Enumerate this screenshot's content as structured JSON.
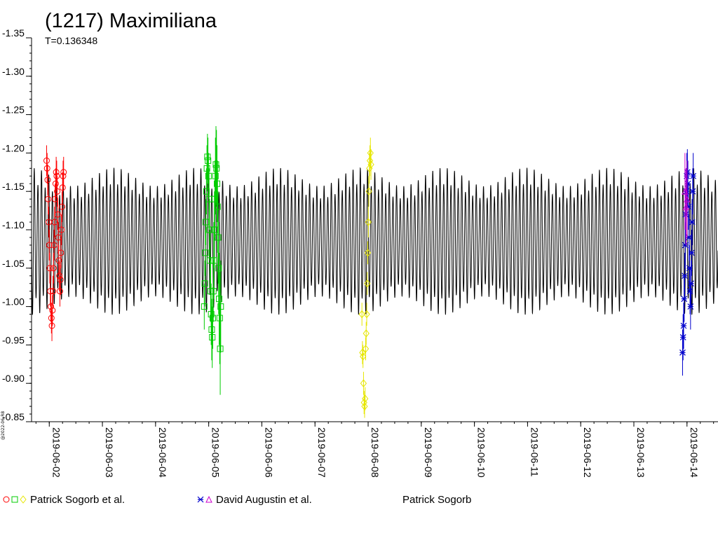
{
  "chart_data": {
    "type": "scatter",
    "title": "(1217) Maximiliana",
    "subtitle": "T=0.136348",
    "credit": "@2022-06-R8",
    "xlabel": "",
    "ylabel": "",
    "x_range": [
      "2019-06-01T16:00",
      "2019-06-14T14:00"
    ],
    "ylim": [
      -1.35,
      -0.85
    ],
    "y_inverted": true,
    "y_ticks": [
      "-1.35",
      "-1.30",
      "-1.25",
      "-1.20",
      "-1.15",
      "-1.10",
      "-1.05",
      "-1.00",
      "-0.95",
      "-0.90",
      "-0.85"
    ],
    "x_ticks": [
      "2019-06-02",
      "2019-06-03",
      "2019-06-04",
      "2019-06-05",
      "2019-06-06",
      "2019-06-07",
      "2019-06-08",
      "2019-06-09",
      "2019-06-10",
      "2019-06-11",
      "2019-06-12",
      "2019-06-13",
      "2019-06-14"
    ],
    "model_curve": {
      "color": "#000000",
      "period_days": 0.136348,
      "mean_mag": -1.085,
      "amp_max": 0.1,
      "amp_min": 0.075
    },
    "legend": [
      {
        "label": "Patrick Sogorb et al.",
        "symbols": [
          "circle",
          "square",
          "diamond"
        ],
        "colors": [
          "#ff0000",
          "#00cc00",
          "#e6e600"
        ]
      },
      {
        "label": "David Augustin et al.",
        "symbols": [
          "star",
          "triangle"
        ],
        "colors": [
          "#0000cc",
          "#cc00cc"
        ]
      },
      {
        "label": "Patrick Sogorb",
        "symbols": [],
        "colors": []
      }
    ],
    "series": [
      {
        "name": "Patrick Sogorb et al.",
        "marker": "circle",
        "color": "#ff0000",
        "points": [
          {
            "x": "2019-06-01T22:48",
            "y": -1.19,
            "err": 0.02
          },
          {
            "x": "2019-06-01T23:02",
            "y": -1.18,
            "err": 0.02
          },
          {
            "x": "2019-06-01T23:17",
            "y": -1.165,
            "err": 0.02
          },
          {
            "x": "2019-06-01T23:31",
            "y": -1.14,
            "err": 0.02
          },
          {
            "x": "2019-06-01T23:46",
            "y": -1.11,
            "err": 0.02
          },
          {
            "x": "2019-06-02T00:00",
            "y": -1.08,
            "err": 0.02
          },
          {
            "x": "2019-06-02T00:14",
            "y": -1.05,
            "err": 0.02
          },
          {
            "x": "2019-06-02T00:29",
            "y": -1.02,
            "err": 0.02
          },
          {
            "x": "2019-06-02T00:43",
            "y": -1.0,
            "err": 0.02
          },
          {
            "x": "2019-06-02T00:58",
            "y": -0.985,
            "err": 0.02
          },
          {
            "x": "2019-06-02T01:12",
            "y": -0.975,
            "err": 0.02
          },
          {
            "x": "2019-06-02T01:26",
            "y": -0.995,
            "err": 0.02
          },
          {
            "x": "2019-06-02T01:41",
            "y": -1.02,
            "err": 0.02
          },
          {
            "x": "2019-06-02T01:55",
            "y": -1.05,
            "err": 0.02
          },
          {
            "x": "2019-06-02T02:10",
            "y": -1.08,
            "err": 0.02
          },
          {
            "x": "2019-06-02T02:24",
            "y": -1.11,
            "err": 0.02
          },
          {
            "x": "2019-06-02T02:38",
            "y": -1.14,
            "err": 0.02
          },
          {
            "x": "2019-06-02T02:53",
            "y": -1.16,
            "err": 0.02
          },
          {
            "x": "2019-06-02T03:07",
            "y": -1.175,
            "err": 0.02
          },
          {
            "x": "2019-06-02T03:22",
            "y": -1.17,
            "err": 0.02
          },
          {
            "x": "2019-06-02T03:36",
            "y": -1.15,
            "err": 0.02
          },
          {
            "x": "2019-06-02T03:50",
            "y": -1.12,
            "err": 0.02
          },
          {
            "x": "2019-06-02T04:05",
            "y": -1.09,
            "err": 0.02
          },
          {
            "x": "2019-06-02T04:19",
            "y": -1.06,
            "err": 0.02
          },
          {
            "x": "2019-06-02T04:34",
            "y": -1.04,
            "err": 0.02
          },
          {
            "x": "2019-06-02T04:48",
            "y": -1.02,
            "err": 0.02
          },
          {
            "x": "2019-06-02T05:02",
            "y": -1.035,
            "err": 0.02
          },
          {
            "x": "2019-06-02T05:17",
            "y": -1.07,
            "err": 0.02
          },
          {
            "x": "2019-06-02T05:31",
            "y": -1.1,
            "err": 0.02
          },
          {
            "x": "2019-06-02T05:46",
            "y": -1.13,
            "err": 0.02
          },
          {
            "x": "2019-06-02T06:00",
            "y": -1.155,
            "err": 0.02
          },
          {
            "x": "2019-06-02T06:14",
            "y": -1.17,
            "err": 0.02
          },
          {
            "x": "2019-06-02T06:29",
            "y": -1.175,
            "err": 0.02
          }
        ]
      },
      {
        "name": "Patrick Sogorb et al.",
        "marker": "square",
        "color": "#00cc00",
        "points": [
          {
            "x": "2019-06-04T22:00",
            "y": -1.0,
            "err": 0.03
          },
          {
            "x": "2019-06-04T22:14",
            "y": -1.03,
            "err": 0.03
          },
          {
            "x": "2019-06-04T22:29",
            "y": -1.07,
            "err": 0.03
          },
          {
            "x": "2019-06-04T22:43",
            "y": -1.11,
            "err": 0.03
          },
          {
            "x": "2019-06-04T22:58",
            "y": -1.15,
            "err": 0.03
          },
          {
            "x": "2019-06-04T23:12",
            "y": -1.18,
            "err": 0.03
          },
          {
            "x": "2019-06-04T23:26",
            "y": -1.195,
            "err": 0.03
          },
          {
            "x": "2019-06-04T23:41",
            "y": -1.19,
            "err": 0.03
          },
          {
            "x": "2019-06-04T23:55",
            "y": -1.17,
            "err": 0.03
          },
          {
            "x": "2019-06-05T00:10",
            "y": -1.14,
            "err": 0.04
          },
          {
            "x": "2019-06-05T00:24",
            "y": -1.1,
            "err": 0.04
          },
          {
            "x": "2019-06-05T00:38",
            "y": -1.06,
            "err": 0.04
          },
          {
            "x": "2019-06-05T00:53",
            "y": -1.02,
            "err": 0.04
          },
          {
            "x": "2019-06-05T01:07",
            "y": -0.99,
            "err": 0.04
          },
          {
            "x": "2019-06-05T01:22",
            "y": -0.97,
            "err": 0.04
          },
          {
            "x": "2019-06-05T01:36",
            "y": -0.96,
            "err": 0.04
          },
          {
            "x": "2019-06-05T01:50",
            "y": -0.985,
            "err": 0.04
          },
          {
            "x": "2019-06-05T02:05",
            "y": -1.02,
            "err": 0.04
          },
          {
            "x": "2019-06-05T02:19",
            "y": -1.06,
            "err": 0.05
          },
          {
            "x": "2019-06-05T02:34",
            "y": -1.1,
            "err": 0.05
          },
          {
            "x": "2019-06-05T02:48",
            "y": -1.14,
            "err": 0.05
          },
          {
            "x": "2019-06-05T03:02",
            "y": -1.17,
            "err": 0.05
          },
          {
            "x": "2019-06-05T03:17",
            "y": -1.185,
            "err": 0.05
          },
          {
            "x": "2019-06-05T03:31",
            "y": -1.18,
            "err": 0.05
          },
          {
            "x": "2019-06-05T03:46",
            "y": -1.16,
            "err": 0.05
          },
          {
            "x": "2019-06-05T04:00",
            "y": -1.13,
            "err": 0.06
          },
          {
            "x": "2019-06-05T04:14",
            "y": -1.09,
            "err": 0.06
          },
          {
            "x": "2019-06-05T04:29",
            "y": -1.05,
            "err": 0.06
          },
          {
            "x": "2019-06-05T04:43",
            "y": -1.01,
            "err": 0.06
          },
          {
            "x": "2019-06-05T04:58",
            "y": -0.985,
            "err": 0.06
          },
          {
            "x": "2019-06-05T05:12",
            "y": -0.945,
            "err": 0.06
          },
          {
            "x": "2019-06-05T05:26",
            "y": -1.0,
            "err": 0.06
          }
        ]
      },
      {
        "name": "Patrick Sogorb et al.",
        "marker": "diamond",
        "color": "#e6e600",
        "points": [
          {
            "x": "2019-06-07T21:12",
            "y": -0.99,
            "err": 0.015
          },
          {
            "x": "2019-06-07T21:26",
            "y": -0.94,
            "err": 0.015
          },
          {
            "x": "2019-06-07T21:41",
            "y": -0.935,
            "err": 0.015
          },
          {
            "x": "2019-06-07T21:55",
            "y": -0.9,
            "err": 0.015
          },
          {
            "x": "2019-06-07T22:10",
            "y": -0.875,
            "err": 0.015
          },
          {
            "x": "2019-06-07T22:24",
            "y": -0.87,
            "err": 0.015
          },
          {
            "x": "2019-06-07T22:38",
            "y": -0.88,
            "err": 0.015
          },
          {
            "x": "2019-06-07T22:53",
            "y": -0.945,
            "err": 0.015
          },
          {
            "x": "2019-06-07T23:07",
            "y": -0.965,
            "err": 0.015
          },
          {
            "x": "2019-06-07T23:22",
            "y": -0.99,
            "err": 0.015
          },
          {
            "x": "2019-06-07T23:36",
            "y": -1.03,
            "err": 0.015
          },
          {
            "x": "2019-06-07T23:50",
            "y": -1.07,
            "err": 0.015
          },
          {
            "x": "2019-06-08T00:05",
            "y": -1.11,
            "err": 0.02
          },
          {
            "x": "2019-06-08T00:19",
            "y": -1.15,
            "err": 0.02
          },
          {
            "x": "2019-06-08T00:34",
            "y": -1.18,
            "err": 0.02
          },
          {
            "x": "2019-06-08T00:48",
            "y": -1.19,
            "err": 0.02
          },
          {
            "x": "2019-06-08T01:02",
            "y": -1.2,
            "err": 0.02
          },
          {
            "x": "2019-06-08T01:17",
            "y": -1.185,
            "err": 0.02
          }
        ]
      },
      {
        "name": "David Augustin et al.",
        "marker": "star",
        "color": "#0000cc",
        "points": [
          {
            "x": "2019-06-13T22:00",
            "y": -0.94,
            "err": 0.03
          },
          {
            "x": "2019-06-13T22:14",
            "y": -0.96,
            "err": 0.03
          },
          {
            "x": "2019-06-13T22:29",
            "y": -0.975,
            "err": 0.03
          },
          {
            "x": "2019-06-13T22:43",
            "y": -1.01,
            "err": 0.03
          },
          {
            "x": "2019-06-13T22:58",
            "y": -1.04,
            "err": 0.03
          },
          {
            "x": "2019-06-13T23:12",
            "y": -1.08,
            "err": 0.03
          },
          {
            "x": "2019-06-13T23:26",
            "y": -1.12,
            "err": 0.03
          },
          {
            "x": "2019-06-13T23:41",
            "y": -1.15,
            "err": 0.03
          },
          {
            "x": "2019-06-13T23:55",
            "y": -1.17,
            "err": 0.03
          },
          {
            "x": "2019-06-14T00:10",
            "y": -1.175,
            "err": 0.03
          },
          {
            "x": "2019-06-14T00:24",
            "y": -1.16,
            "err": 0.03
          },
          {
            "x": "2019-06-14T00:38",
            "y": -1.13,
            "err": 0.03
          },
          {
            "x": "2019-06-14T00:53",
            "y": -1.09,
            "err": 0.03
          },
          {
            "x": "2019-06-14T01:07",
            "y": -1.05,
            "err": 0.03
          },
          {
            "x": "2019-06-14T01:22",
            "y": -1.02,
            "err": 0.03
          },
          {
            "x": "2019-06-14T01:36",
            "y": -1.0,
            "err": 0.03
          },
          {
            "x": "2019-06-14T01:50",
            "y": -1.03,
            "err": 0.03
          },
          {
            "x": "2019-06-14T02:05",
            "y": -1.07,
            "err": 0.03
          },
          {
            "x": "2019-06-14T02:19",
            "y": -1.11,
            "err": 0.03
          },
          {
            "x": "2019-06-14T02:34",
            "y": -1.15,
            "err": 0.03
          },
          {
            "x": "2019-06-14T02:48",
            "y": -1.17,
            "err": 0.03
          }
        ]
      },
      {
        "name": "David Augustin et al.",
        "marker": "triangle",
        "color": "#cc00cc",
        "points": [
          {
            "x": "2019-06-13T23:05",
            "y": -1.15,
            "err": 0.05
          },
          {
            "x": "2019-06-13T23:34",
            "y": -1.13,
            "err": 0.05
          },
          {
            "x": "2019-06-14T00:02",
            "y": -1.14,
            "err": 0.05
          }
        ]
      }
    ]
  }
}
